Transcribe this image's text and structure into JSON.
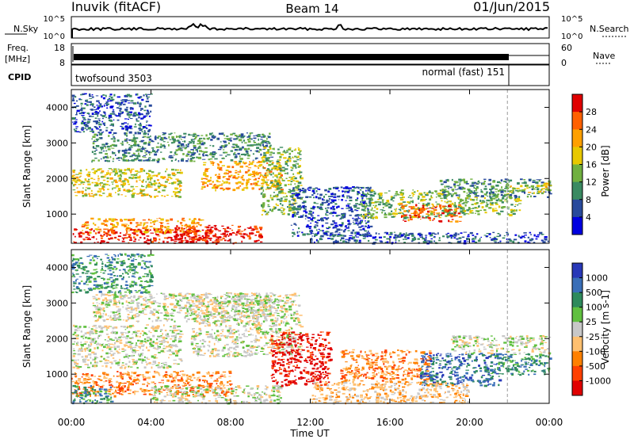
{
  "header": {
    "station": "Inuvik (fitACF)",
    "beam": "Beam 14",
    "date": "01/Jun/2015"
  },
  "strips": {
    "nsky_label": "N.Sky",
    "nsky_ticks": [
      "10^5",
      "10^0"
    ],
    "nsearch_label": "N.Search",
    "nsearch_ticks": [
      "10^5",
      "10^0"
    ],
    "freq_label": "Freq.",
    "freq_unit": "[MHz]",
    "freq_ticks": [
      "18",
      "8"
    ],
    "nave_label": "Nave",
    "nave_ticks": [
      "60",
      "0"
    ],
    "cpid_label": "CPID",
    "cpid_left": "twofsound 3503",
    "cpid_right": "normal (fast) 151"
  },
  "chart_data": [
    {
      "type": "heatmap",
      "name": "Power",
      "ylabel": "Slant Range [km]",
      "xlabel": "Time UT",
      "xlim": [
        0,
        24
      ],
      "ylim": [
        180,
        4500
      ],
      "x_ticks": [
        "00:00",
        "04:00",
        "08:00",
        "12:00",
        "16:00",
        "20:00",
        "00:00"
      ],
      "y_ticks": [
        1000,
        2000,
        3000,
        4000
      ],
      "colorbar_label": "Power [dB]",
      "colorbar_ticks": [
        "28",
        "24",
        "20",
        "16",
        "12",
        "8",
        "4"
      ],
      "colorbar_colors": [
        "#e00000",
        "#ff6000",
        "#ffa000",
        "#e8c800",
        "#70b040",
        "#3a8a62",
        "#284a9c",
        "#0000e0"
      ],
      "cpid_change_hour": 21.9,
      "patches": [
        {
          "t0": 0.0,
          "t1": 7.5,
          "r0": 200,
          "r1": 600,
          "level": 7
        },
        {
          "t0": 5.0,
          "t1": 9.5,
          "r0": 200,
          "r1": 700,
          "level": 7
        },
        {
          "t0": 0.5,
          "t1": 6.5,
          "r0": 500,
          "r1": 900,
          "level": 5
        },
        {
          "t0": 0.0,
          "t1": 5.5,
          "r0": 1500,
          "r1": 2300,
          "level": 4
        },
        {
          "t0": 6.5,
          "t1": 10.5,
          "r0": 1700,
          "r1": 2500,
          "level": 5
        },
        {
          "t0": 1.0,
          "t1": 10.0,
          "r0": 2500,
          "r1": 3300,
          "level": 2
        },
        {
          "t0": 9.5,
          "t1": 11.5,
          "r0": 1000,
          "r1": 2900,
          "level": 3
        },
        {
          "t0": 11.0,
          "t1": 15.0,
          "r0": 400,
          "r1": 1800,
          "level": 1
        },
        {
          "t0": 14.5,
          "t1": 19.0,
          "r0": 900,
          "r1": 1700,
          "level": 3
        },
        {
          "t0": 16.5,
          "t1": 19.5,
          "r0": 800,
          "r1": 1300,
          "level": 6
        },
        {
          "t0": 19.0,
          "t1": 22.5,
          "r0": 1000,
          "r1": 1600,
          "level": 3
        },
        {
          "t0": 18.5,
          "t1": 24.0,
          "r0": 1500,
          "r1": 2000,
          "level": 2
        },
        {
          "t0": 22.0,
          "t1": 24.0,
          "r0": 1600,
          "r1": 1900,
          "level": 4
        },
        {
          "t0": 12.0,
          "t1": 24.0,
          "r0": 200,
          "r1": 500,
          "level": 1
        },
        {
          "t0": 0.0,
          "t1": 4.0,
          "r0": 3300,
          "r1": 4400,
          "level": 1
        }
      ]
    },
    {
      "type": "heatmap",
      "name": "Velocity",
      "ylabel": "Slant Range [km]",
      "xlabel": "Time UT",
      "xlim": [
        0,
        24
      ],
      "ylim": [
        180,
        4500
      ],
      "x_ticks": [
        "00:00",
        "04:00",
        "08:00",
        "12:00",
        "16:00",
        "20:00",
        "00:00"
      ],
      "y_ticks": [
        1000,
        2000,
        3000,
        4000
      ],
      "colorbar_label": "Velocity [m s-1]",
      "colorbar_ticks": [
        "1000",
        "500",
        "100",
        "25",
        "-25",
        "-100",
        "-500",
        "-1000"
      ],
      "colorbar_colors": [
        "#2838b8",
        "#3a6fb8",
        "#2e8a5c",
        "#60c040",
        "#c8c8c8",
        "#ffc070",
        "#ff8000",
        "#ff4000",
        "#e00000"
      ],
      "cpid_change_hour": 21.9,
      "patches": [
        {
          "t0": 0.0,
          "t1": 5.5,
          "r0": 1200,
          "r1": 2400,
          "level": 4
        },
        {
          "t0": 6.0,
          "t1": 11.5,
          "r0": 1500,
          "r1": 3300,
          "level": 4
        },
        {
          "t0": 1.0,
          "t1": 10.0,
          "r0": 2500,
          "r1": 3300,
          "level": 4
        },
        {
          "t0": 0.0,
          "t1": 8.0,
          "r0": 400,
          "r1": 1100,
          "level": 2
        },
        {
          "t0": 0.0,
          "t1": 2.0,
          "r0": 200,
          "r1": 700,
          "level": 6
        },
        {
          "t0": 4.0,
          "t1": 10.5,
          "r0": 200,
          "r1": 700,
          "level": 4
        },
        {
          "t0": 10.0,
          "t1": 13.0,
          "r0": 700,
          "r1": 2200,
          "level": 0
        },
        {
          "t0": 13.5,
          "t1": 18.0,
          "r0": 800,
          "r1": 1700,
          "level": 2
        },
        {
          "t0": 17.5,
          "t1": 21.5,
          "r0": 700,
          "r1": 1600,
          "level": 7
        },
        {
          "t0": 21.0,
          "t1": 24.0,
          "r0": 1000,
          "r1": 1600,
          "level": 6
        },
        {
          "t0": 19.0,
          "t1": 24.0,
          "r0": 1600,
          "r1": 2100,
          "level": 4
        },
        {
          "t0": 12.0,
          "t1": 20.0,
          "r0": 200,
          "r1": 800,
          "level": 3
        },
        {
          "t0": 0.0,
          "t1": 4.0,
          "r0": 3300,
          "r1": 4400,
          "level": 6
        }
      ]
    }
  ]
}
